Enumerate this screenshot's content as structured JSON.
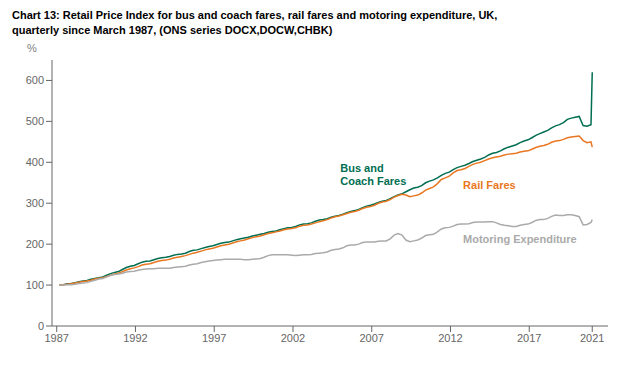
{
  "chart_data": {
    "type": "line",
    "title": "Chart 13: Retail Price Index for bus and coach fares, rail fares and motoring expenditure, UK,",
    "subtitle": "quarterly since March 1987, (ONS series DOCX,DOCW,CHBK)",
    "y_label": "%",
    "xlim": [
      1986.7,
      2022
    ],
    "xticks": [
      1987,
      1992,
      1997,
      2002,
      2007,
      2012,
      2017,
      2021
    ],
    "ylim": [
      0,
      650
    ],
    "yticks": [
      0,
      100,
      200,
      300,
      400,
      500,
      600
    ],
    "grid": false,
    "x": [
      1987.17,
      1987.42,
      1987.67,
      1987.92,
      1988.17,
      1988.42,
      1988.67,
      1988.92,
      1989.17,
      1989.42,
      1989.67,
      1989.92,
      1990.17,
      1990.42,
      1990.67,
      1990.92,
      1991.17,
      1991.42,
      1991.67,
      1991.92,
      1992.17,
      1992.42,
      1992.67,
      1992.92,
      1993.17,
      1993.42,
      1993.67,
      1993.92,
      1994.17,
      1994.42,
      1994.67,
      1994.92,
      1995.17,
      1995.42,
      1995.67,
      1995.92,
      1996.17,
      1996.42,
      1996.67,
      1996.92,
      1997.17,
      1997.42,
      1997.67,
      1997.92,
      1998.17,
      1998.42,
      1998.67,
      1998.92,
      1999.17,
      1999.42,
      1999.67,
      1999.92,
      2000.17,
      2000.42,
      2000.67,
      2000.92,
      2001.17,
      2001.42,
      2001.67,
      2001.92,
      2002.17,
      2002.42,
      2002.67,
      2002.92,
      2003.17,
      2003.42,
      2003.67,
      2003.92,
      2004.17,
      2004.42,
      2004.67,
      2004.92,
      2005.17,
      2005.42,
      2005.67,
      2005.92,
      2006.17,
      2006.42,
      2006.67,
      2006.92,
      2007.17,
      2007.42,
      2007.67,
      2007.92,
      2008.17,
      2008.42,
      2008.67,
      2008.92,
      2009.17,
      2009.42,
      2009.67,
      2009.92,
      2010.17,
      2010.42,
      2010.67,
      2010.92,
      2011.17,
      2011.42,
      2011.67,
      2011.92,
      2012.17,
      2012.42,
      2012.67,
      2012.92,
      2013.17,
      2013.42,
      2013.67,
      2013.92,
      2014.17,
      2014.42,
      2014.67,
      2014.92,
      2015.17,
      2015.42,
      2015.67,
      2015.92,
      2016.17,
      2016.42,
      2016.67,
      2016.92,
      2017.17,
      2017.42,
      2017.67,
      2017.92,
      2018.17,
      2018.42,
      2018.67,
      2018.92,
      2019.17,
      2019.42,
      2019.67,
      2019.92,
      2020.17,
      2020.42,
      2020.67,
      2020.92,
      2021.0
    ],
    "series": [
      {
        "name": "Bus and\nCoach Fares",
        "color": "#006e51",
        "values": [
          100,
          101,
          103,
          104,
          106,
          108,
          110,
          111,
          114,
          116,
          118,
          120,
          124,
          128,
          131,
          133,
          138,
          143,
          146,
          148,
          152,
          156,
          158,
          159,
          162,
          165,
          167,
          168,
          170,
          173,
          175,
          176,
          178,
          182,
          185,
          186,
          189,
          192,
          194,
          196,
          199,
          202,
          204,
          205,
          208,
          211,
          213,
          215,
          217,
          220,
          222,
          224,
          226,
          229,
          231,
          232,
          235,
          238,
          240,
          241,
          243,
          247,
          249,
          250,
          252,
          256,
          259,
          260,
          262,
          266,
          268,
          270,
          273,
          277,
          280,
          282,
          285,
          289,
          293,
          295,
          298,
          302,
          305,
          307,
          311,
          316,
          320,
          323,
          328,
          333,
          337,
          339,
          343,
          350,
          354,
          357,
          362,
          368,
          373,
          376,
          382,
          387,
          390,
          393,
          397,
          402,
          405,
          408,
          412,
          418,
          422,
          424,
          428,
          433,
          437,
          440,
          443,
          448,
          452,
          455,
          460,
          466,
          470,
          474,
          478,
          484,
          489,
          492,
          497,
          505,
          508,
          510,
          512,
          490,
          488,
          492,
          620
        ]
      },
      {
        "name": "Rail Fares",
        "color": "#e87722",
        "values": [
          100,
          101,
          102,
          103,
          105,
          107,
          109,
          110,
          112,
          115,
          117,
          118,
          121,
          124,
          127,
          129,
          133,
          137,
          140,
          142,
          145,
          149,
          151,
          152,
          155,
          158,
          160,
          161,
          163,
          166,
          168,
          170,
          172,
          175,
          178,
          180,
          183,
          186,
          188,
          190,
          193,
          196,
          198,
          200,
          203,
          206,
          208,
          210,
          213,
          216,
          218,
          220,
          223,
          226,
          228,
          230,
          232,
          235,
          237,
          238,
          240,
          244,
          246,
          247,
          249,
          252,
          255,
          257,
          260,
          264,
          267,
          269,
          272,
          275,
          278,
          280,
          283,
          287,
          290,
          292,
          295,
          300,
          303,
          305,
          309,
          315,
          319,
          322,
          320,
          316,
          318,
          320,
          325,
          332,
          336,
          340,
          348,
          358,
          362,
          366,
          374,
          380,
          382,
          385,
          390,
          395,
          398,
          400,
          404,
          408,
          411,
          413,
          415,
          418,
          420,
          421,
          422,
          425,
          427,
          428,
          432,
          436,
          439,
          441,
          444,
          449,
          452,
          453,
          456,
          460,
          462,
          463,
          464,
          453,
          448,
          450,
          437
        ]
      },
      {
        "name": "Motoring Expenditure",
        "color": "#aaaaaa",
        "values": [
          100,
          100,
          101,
          101,
          102,
          104,
          105,
          106,
          109,
          112,
          115,
          116,
          120,
          124,
          126,
          127,
          129,
          132,
          133,
          134,
          136,
          138,
          139,
          140,
          140,
          141,
          141,
          141,
          141,
          143,
          144,
          145,
          146,
          149,
          151,
          152,
          155,
          157,
          159,
          160,
          161,
          162,
          163,
          163,
          163,
          163,
          163,
          162,
          162,
          163,
          164,
          165,
          168,
          172,
          174,
          174,
          174,
          174,
          174,
          173,
          172,
          173,
          174,
          174,
          175,
          177,
          178,
          179,
          181,
          185,
          187,
          188,
          191,
          196,
          198,
          198,
          200,
          204,
          205,
          205,
          205,
          207,
          208,
          208,
          213,
          222,
          226,
          222,
          210,
          206,
          208,
          210,
          215,
          221,
          223,
          224,
          230,
          237,
          240,
          241,
          244,
          248,
          249,
          249,
          250,
          253,
          254,
          254,
          254,
          255,
          255,
          252,
          248,
          246,
          245,
          243,
          243,
          246,
          248,
          249,
          253,
          258,
          260,
          260,
          263,
          268,
          271,
          270,
          270,
          272,
          272,
          270,
          267,
          247,
          248,
          253,
          260
        ]
      }
    ]
  }
}
